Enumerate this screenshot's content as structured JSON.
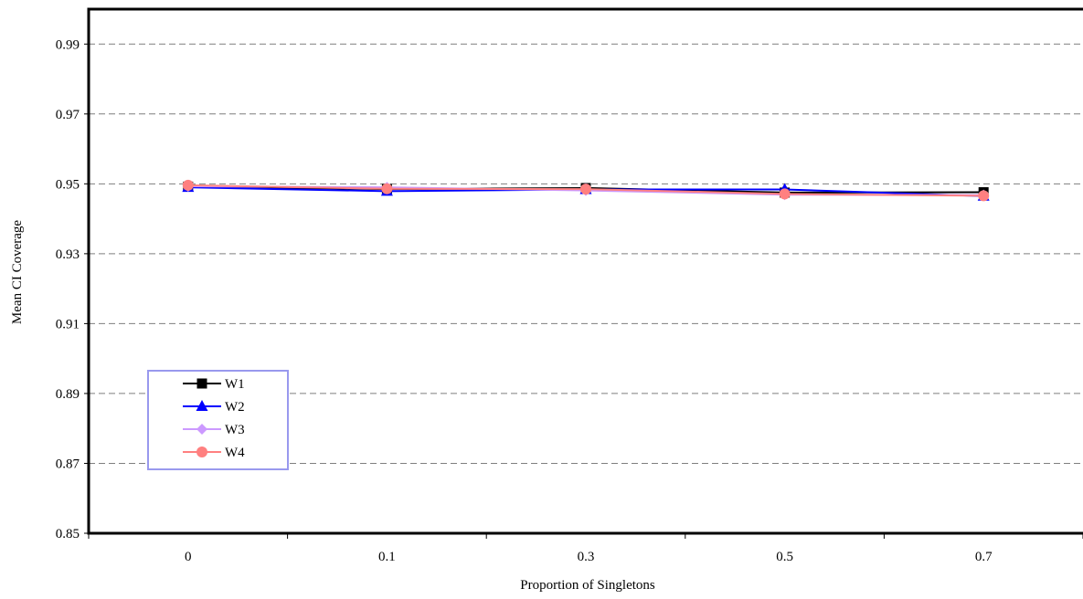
{
  "chart_data": {
    "type": "line",
    "title": "",
    "xlabel": "Proportion of Singletons",
    "ylabel": "Mean CI Coverage",
    "categories": [
      "0",
      "0.1",
      "0.3",
      "0.5",
      "0.7"
    ],
    "ylim": [
      0.85,
      1.0
    ],
    "yticks": [
      "0.85",
      "0.87",
      "0.89",
      "0.91",
      "0.93",
      "0.95",
      "0.97",
      "0.99"
    ],
    "grid": "horizontal dashed",
    "legend_position": "lower-left",
    "series": [
      {
        "name": "W1",
        "values": [
          0.9492,
          0.9485,
          0.9488,
          0.9475,
          0.9476
        ],
        "color": "#000000",
        "marker": "square"
      },
      {
        "name": "W2",
        "values": [
          0.949,
          0.9479,
          0.9484,
          0.9484,
          0.9465
        ],
        "color": "#0000ff",
        "marker": "triangle"
      },
      {
        "name": "W3",
        "values": [
          0.9493,
          0.949,
          0.9481,
          0.9469,
          0.9468
        ],
        "color": "#cc99ff",
        "marker": "diamond"
      },
      {
        "name": "W4",
        "values": [
          0.9496,
          0.9486,
          0.9485,
          0.9471,
          0.9466
        ],
        "color": "#ff8080",
        "marker": "circle"
      }
    ]
  }
}
